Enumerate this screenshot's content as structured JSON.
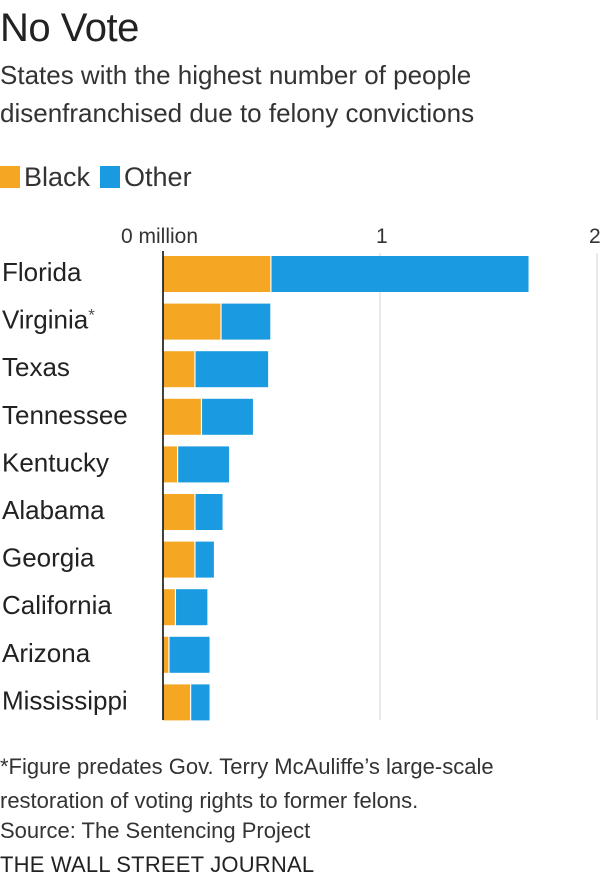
{
  "header": {
    "title": "No Vote",
    "subtitle": "States with the highest number of people disenfranchised due to felony convictions"
  },
  "legend": {
    "items": [
      {
        "label": "Black",
        "color": "#f5a623"
      },
      {
        "label": "Other",
        "color": "#1a9ae0"
      }
    ]
  },
  "chart_data": {
    "type": "bar",
    "orientation": "horizontal",
    "stacked": true,
    "categories": [
      "Florida",
      "Virginia",
      "Texas",
      "Tennessee",
      "Kentucky",
      "Alabama",
      "Georgia",
      "California",
      "Arizona",
      "Mississippi"
    ],
    "category_markers": [
      "",
      "*",
      "",
      "",
      "",
      "",
      "",
      "",
      "",
      ""
    ],
    "series": [
      {
        "name": "Black",
        "color": "#f5a623",
        "values": [
          0.5,
          0.27,
          0.15,
          0.18,
          0.07,
          0.15,
          0.15,
          0.06,
          0.03,
          0.13
        ]
      },
      {
        "name": "Other",
        "color": "#1a9ae0",
        "values": [
          1.19,
          0.23,
          0.34,
          0.24,
          0.24,
          0.13,
          0.09,
          0.15,
          0.19,
          0.09
        ]
      }
    ],
    "xlim": [
      0,
      2
    ],
    "xticks": [
      0,
      1,
      2
    ],
    "xtick_labels": [
      "0 million",
      "1",
      "2"
    ],
    "grid": true,
    "legend_position": "top-left"
  },
  "footer": {
    "footnote": "*Figure predates Gov. Terry McAuliffe’s large-scale restoration of voting rights to former felons.",
    "source": "Source: The Sentencing Project",
    "publisher": "THE WALL STREET JOURNAL"
  }
}
